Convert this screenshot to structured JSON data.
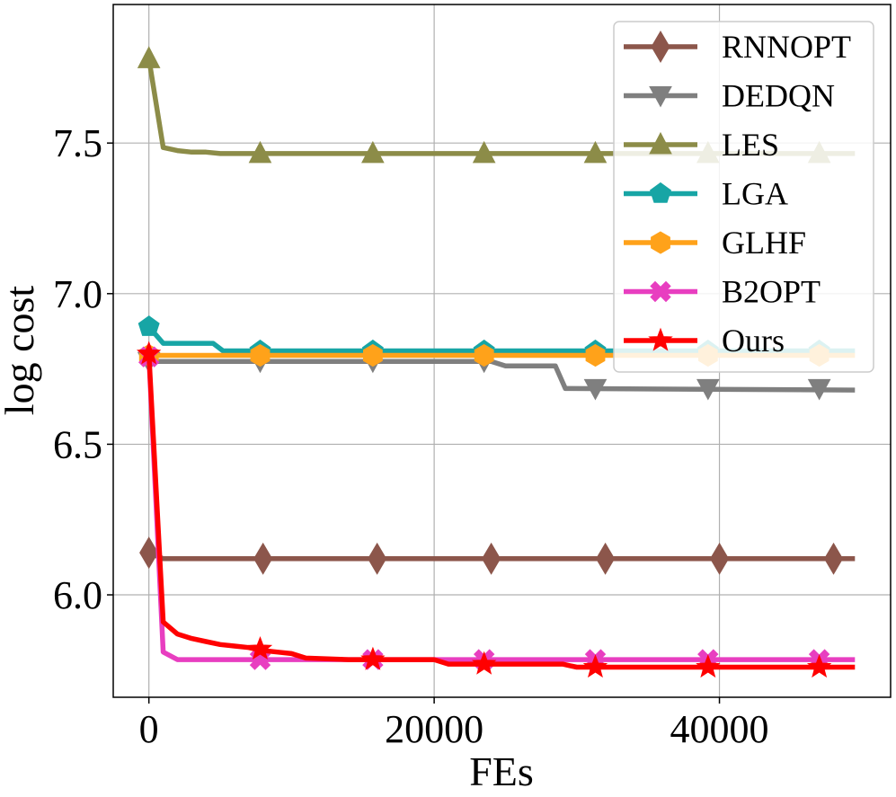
{
  "chart_data": {
    "type": "line",
    "title": "",
    "xlabel": "FEs",
    "ylabel": "log cost",
    "xlim": [
      -2500,
      52000
    ],
    "ylim": [
      5.66,
      7.96
    ],
    "xticks": [
      0,
      20000,
      40000
    ],
    "xtick_labels": [
      "0",
      "20000",
      "40000"
    ],
    "yticks": [
      6.0,
      6.5,
      7.0,
      7.5
    ],
    "ytick_labels": [
      "6.0",
      "6.5",
      "7.0",
      "7.5"
    ],
    "grid": true,
    "legend_position": "top-right",
    "series": [
      {
        "name": "RNNOPT",
        "color": "#8c564b",
        "marker": "diamond",
        "x": [
          0,
          1000,
          49500
        ],
        "y": [
          6.14,
          6.12,
          6.12
        ],
        "marker_x": [
          0,
          8000,
          16000,
          24000,
          32000,
          40000,
          48000
        ],
        "marker_y": [
          6.14,
          6.12,
          6.12,
          6.12,
          6.12,
          6.12,
          6.12
        ]
      },
      {
        "name": "DEDQN",
        "color": "#7f7f7f",
        "marker": "triangle-down",
        "x": [
          0,
          24000,
          25000,
          28500,
          29200,
          49500
        ],
        "y": [
          6.775,
          6.775,
          6.76,
          6.76,
          6.685,
          6.68
        ],
        "marker_x": [
          0,
          7800,
          15700,
          23500,
          31300,
          39200,
          47000
        ],
        "marker_y": [
          6.775,
          6.775,
          6.775,
          6.775,
          6.685,
          6.685,
          6.685
        ]
      },
      {
        "name": "LES",
        "color": "#8c8c48",
        "marker": "triangle-up",
        "x": [
          0,
          1000,
          2000,
          3000,
          4000,
          5000,
          10000,
          49500
        ],
        "y": [
          7.78,
          7.485,
          7.475,
          7.47,
          7.47,
          7.465,
          7.465,
          7.465
        ],
        "marker_x": [
          0,
          7800,
          15700,
          23500,
          31300,
          39200,
          47000
        ],
        "marker_y": [
          7.78,
          7.465,
          7.465,
          7.465,
          7.465,
          7.465,
          7.465
        ]
      },
      {
        "name": "LGA",
        "color": "#17a5a5",
        "marker": "pentagon",
        "x": [
          0,
          1000,
          4500,
          5200,
          49500
        ],
        "y": [
          6.89,
          6.835,
          6.835,
          6.81,
          6.81
        ],
        "marker_x": [
          0,
          7800,
          15700,
          23500,
          31300,
          39200,
          47000
        ],
        "marker_y": [
          6.89,
          6.81,
          6.81,
          6.81,
          6.81,
          6.81,
          6.81
        ]
      },
      {
        "name": "GLHF",
        "color": "#ffa21a",
        "marker": "hexagon",
        "x": [
          0,
          49500
        ],
        "y": [
          6.795,
          6.795
        ],
        "marker_x": [
          0,
          7800,
          15700,
          23500,
          31300,
          39200,
          47000
        ],
        "marker_y": [
          6.795,
          6.795,
          6.795,
          6.795,
          6.795,
          6.795,
          6.795
        ]
      },
      {
        "name": "B2OPT",
        "color": "#e83ec0",
        "marker": "x-filled",
        "x": [
          0,
          1000,
          2000,
          49500
        ],
        "y": [
          6.79,
          5.81,
          5.785,
          5.785
        ],
        "marker_x": [
          0,
          7800,
          15700,
          23500,
          31300,
          39200,
          47000
        ],
        "marker_y": [
          6.79,
          5.785,
          5.785,
          5.785,
          5.785,
          5.785,
          5.785
        ]
      },
      {
        "name": "Ours",
        "color": "#ff0000",
        "marker": "star",
        "x": [
          0,
          1000,
          2000,
          3000,
          4000,
          5000,
          6000,
          7000,
          8000,
          9000,
          10000,
          11000,
          14000,
          20000,
          21000,
          29000,
          30000,
          49500
        ],
        "y": [
          6.8,
          5.91,
          5.87,
          5.855,
          5.845,
          5.835,
          5.83,
          5.825,
          5.815,
          5.81,
          5.805,
          5.79,
          5.785,
          5.785,
          5.77,
          5.77,
          5.76,
          5.76
        ],
        "marker_x": [
          0,
          7800,
          15700,
          23500,
          31300,
          39200,
          47000
        ],
        "marker_y": [
          6.8,
          5.82,
          5.785,
          5.77,
          5.76,
          5.76,
          5.76
        ]
      }
    ]
  }
}
